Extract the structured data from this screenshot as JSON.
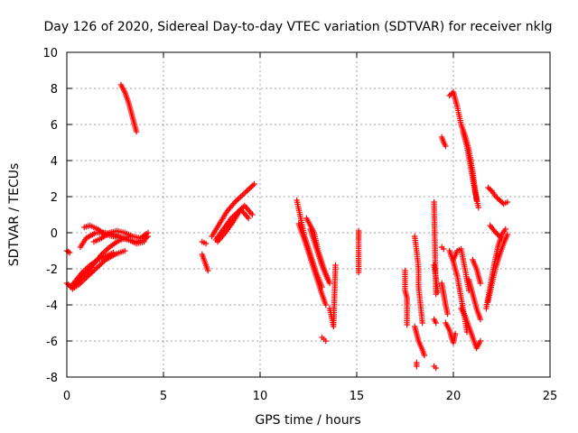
{
  "chart_data": {
    "type": "scatter",
    "title": "Day 126 of 2020, Sidereal Day-to-day VTEC variation (SDTVAR) for receiver nklg",
    "xlabel": "GPS time / hours",
    "ylabel": "SDTVAR / TECUs",
    "xlim": [
      0,
      25
    ],
    "ylim": [
      -8,
      10
    ],
    "xticks": [
      "0",
      "5",
      "10",
      "15",
      "20",
      "25"
    ],
    "yticks": [
      "-8",
      "-6",
      "-4",
      "-2",
      "0",
      "2",
      "4",
      "6",
      "8",
      "10"
    ],
    "grid": true,
    "marker": "+",
    "color": "#ff0000",
    "segments": [
      {
        "x": [
          0.0,
          0.15
        ],
        "y": [
          -1.0,
          -1.1
        ]
      },
      {
        "x": [
          0.0,
          0.3,
          0.6,
          1.0,
          1.5,
          2.0,
          2.5,
          3.0
        ],
        "y": [
          -2.8,
          -3.1,
          -2.9,
          -2.5,
          -2.0,
          -1.5,
          -1.2,
          -1.0
        ]
      },
      {
        "x": [
          0.2,
          0.5,
          0.8,
          1.2,
          1.6,
          2.0,
          2.4
        ],
        "y": [
          -3.0,
          -2.6,
          -2.2,
          -1.8,
          -1.5,
          -1.3,
          -1.1
        ]
      },
      {
        "x": [
          0.3,
          0.6,
          0.9,
          1.2,
          1.5,
          1.8,
          2.2,
          2.6,
          3.0,
          3.3
        ],
        "y": [
          -3.1,
          -2.7,
          -2.3,
          -2.0,
          -1.6,
          -1.2,
          -0.8,
          -0.5,
          -0.3,
          -0.2
        ]
      },
      {
        "x": [
          0.7,
          1.0,
          1.5,
          2.0,
          2.5,
          3.0,
          3.5,
          4.0,
          4.2
        ],
        "y": [
          -0.8,
          -0.3,
          0.0,
          0.0,
          -0.1,
          -0.3,
          -0.5,
          -0.4,
          -0.2
        ]
      },
      {
        "x": [
          0.9,
          1.2,
          1.6,
          2.0,
          2.4,
          2.8,
          3.2,
          3.6,
          4.0
        ],
        "y": [
          0.3,
          0.4,
          0.2,
          -0.1,
          -0.2,
          -0.3,
          -0.4,
          -0.6,
          -0.5
        ]
      },
      {
        "x": [
          1.4,
          1.8,
          2.2,
          2.6,
          3.0,
          3.4,
          3.8,
          4.2
        ],
        "y": [
          -0.5,
          -0.3,
          0.0,
          0.1,
          0.0,
          -0.2,
          -0.3,
          0.0
        ]
      },
      {
        "x": [
          2.8,
          3.0,
          3.2,
          3.4,
          3.6
        ],
        "y": [
          8.2,
          7.8,
          7.2,
          6.4,
          5.6
        ]
      },
      {
        "x": [
          7.0,
          7.2
        ],
        "y": [
          -0.5,
          -0.6
        ]
      },
      {
        "x": [
          7.0,
          7.1,
          7.2,
          7.3
        ],
        "y": [
          -1.2,
          -1.5,
          -1.8,
          -2.1
        ]
      },
      {
        "x": [
          7.5,
          7.9,
          8.3,
          8.7,
          9.0,
          9.4,
          9.7
        ],
        "y": [
          -0.2,
          0.5,
          1.2,
          1.7,
          2.0,
          2.4,
          2.7
        ]
      },
      {
        "x": [
          7.7,
          8.1,
          8.5,
          8.9,
          9.2,
          9.6
        ],
        "y": [
          -0.4,
          0.2,
          0.8,
          1.2,
          1.5,
          1.0
        ]
      },
      {
        "x": [
          7.8,
          8.2,
          8.6,
          9.0,
          9.4
        ],
        "y": [
          -0.5,
          0.0,
          0.6,
          1.3,
          0.8
        ]
      },
      {
        "x": [
          11.9,
          12.1,
          12.3,
          12.6,
          12.9,
          13.2
        ],
        "y": [
          1.8,
          0.8,
          -0.2,
          -1.2,
          -2.2,
          -3.0
        ]
      },
      {
        "x": [
          12.0,
          12.3,
          12.6,
          12.9,
          13.2,
          13.4
        ],
        "y": [
          0.5,
          -0.4,
          -1.4,
          -2.4,
          -3.4,
          -4.0
        ]
      },
      {
        "x": [
          12.4,
          12.8,
          13.0,
          13.3,
          13.6
        ],
        "y": [
          0.8,
          0.0,
          -1.0,
          -2.0,
          -2.8
        ]
      },
      {
        "x": [
          12.6,
          12.9,
          13.2,
          13.5
        ],
        "y": [
          0.2,
          -0.8,
          -1.8,
          -2.6
        ]
      },
      {
        "x": [
          13.2,
          13.3,
          13.4
        ],
        "y": [
          -5.8,
          -5.9,
          -6.0
        ]
      },
      {
        "x": [
          13.6,
          13.8,
          13.9
        ],
        "y": [
          -4.2,
          -5.2,
          -1.8
        ]
      },
      {
        "x": [
          15.1,
          15.1,
          15.1,
          15.1
        ],
        "y": [
          0.1,
          -0.4,
          -1.1,
          -2.2
        ]
      },
      {
        "x": [
          17.5,
          17.5,
          17.6,
          17.6,
          17.6
        ],
        "y": [
          -2.1,
          -3.2,
          -3.6,
          -4.0,
          -5.1
        ]
      },
      {
        "x": [
          18.0,
          18.1,
          18.2,
          18.2,
          18.3,
          18.4
        ],
        "y": [
          -0.2,
          -1.0,
          -2.0,
          -3.0,
          -4.0,
          -5.0
        ]
      },
      {
        "x": [
          18.0,
          18.2,
          18.4,
          18.5
        ],
        "y": [
          -5.2,
          -6.0,
          -6.5,
          -6.8
        ]
      },
      {
        "x": [
          18.1,
          18.1
        ],
        "y": [
          -7.2,
          -7.4
        ]
      },
      {
        "x": [
          19.0,
          19.1
        ],
        "y": [
          -7.4,
          -7.5
        ]
      },
      {
        "x": [
          19.0,
          19.1,
          19.2
        ],
        "y": [
          -1.8,
          -2.5,
          -3.3
        ]
      },
      {
        "x": [
          19.0,
          19.1
        ],
        "y": [
          1.7,
          -3.4
        ]
      },
      {
        "x": [
          19.0,
          19.1
        ],
        "y": [
          -4.8,
          -5.0
        ]
      },
      {
        "x": [
          19.4,
          19.5,
          19.6
        ],
        "y": [
          5.3,
          5.0,
          4.8
        ]
      },
      {
        "x": [
          19.4,
          19.5
        ],
        "y": [
          -0.8,
          -0.9
        ]
      },
      {
        "x": [
          19.4,
          19.5,
          19.6,
          19.7
        ],
        "y": [
          -2.8,
          -3.4,
          -4.0,
          -4.5
        ]
      },
      {
        "x": [
          19.6,
          19.8,
          19.9,
          20.0,
          20.1
        ],
        "y": [
          -5.0,
          -5.4,
          -5.8,
          -6.1,
          -5.6
        ]
      },
      {
        "x": [
          19.8,
          20.0,
          20.2,
          20.4,
          20.6,
          20.7
        ],
        "y": [
          -1.0,
          -1.6,
          -2.4,
          -3.6,
          -4.8,
          -5.5
        ]
      },
      {
        "x": [
          20.0,
          20.2,
          20.4,
          20.6,
          20.8
        ],
        "y": [
          -1.5,
          -1.0,
          -0.9,
          -2.0,
          -3.2
        ]
      },
      {
        "x": [
          19.8,
          20.0,
          20.2,
          20.4,
          20.6,
          20.8,
          21.0,
          21.2
        ],
        "y": [
          7.6,
          7.8,
          7.0,
          6.0,
          5.4,
          4.6,
          3.4,
          1.8
        ]
      },
      {
        "x": [
          20.5,
          20.7,
          20.9,
          21.1,
          21.3
        ],
        "y": [
          5.6,
          4.8,
          3.6,
          2.4,
          1.4
        ]
      },
      {
        "x": [
          20.4,
          20.6,
          20.8,
          21.0,
          21.2,
          21.4
        ],
        "y": [
          -4.2,
          -4.6,
          -5.2,
          -5.8,
          -6.4,
          -6.0
        ]
      },
      {
        "x": [
          20.8,
          21.0,
          21.2,
          21.4
        ],
        "y": [
          -2.6,
          -3.4,
          -4.2,
          -4.8
        ]
      },
      {
        "x": [
          21.0,
          21.2,
          21.4
        ],
        "y": [
          -1.5,
          -2.0,
          -2.8
        ]
      },
      {
        "x": [
          21.7,
          21.9,
          22.1,
          22.3,
          22.5,
          22.7
        ],
        "y": [
          -4.2,
          -3.0,
          -1.8,
          -0.8,
          -0.1,
          0.2
        ]
      },
      {
        "x": [
          21.8,
          22.0,
          22.2,
          22.4,
          22.6,
          22.8
        ],
        "y": [
          -3.8,
          -2.8,
          -1.9,
          -1.2,
          -0.6,
          -0.1
        ]
      },
      {
        "x": [
          21.8,
          22.0,
          22.2,
          22.4,
          22.6,
          22.8
        ],
        "y": [
          2.5,
          2.3,
          2.0,
          1.8,
          1.6,
          1.7
        ]
      },
      {
        "x": [
          21.9,
          22.2,
          22.5
        ],
        "y": [
          0.4,
          0.0,
          -0.3
        ]
      }
    ]
  }
}
